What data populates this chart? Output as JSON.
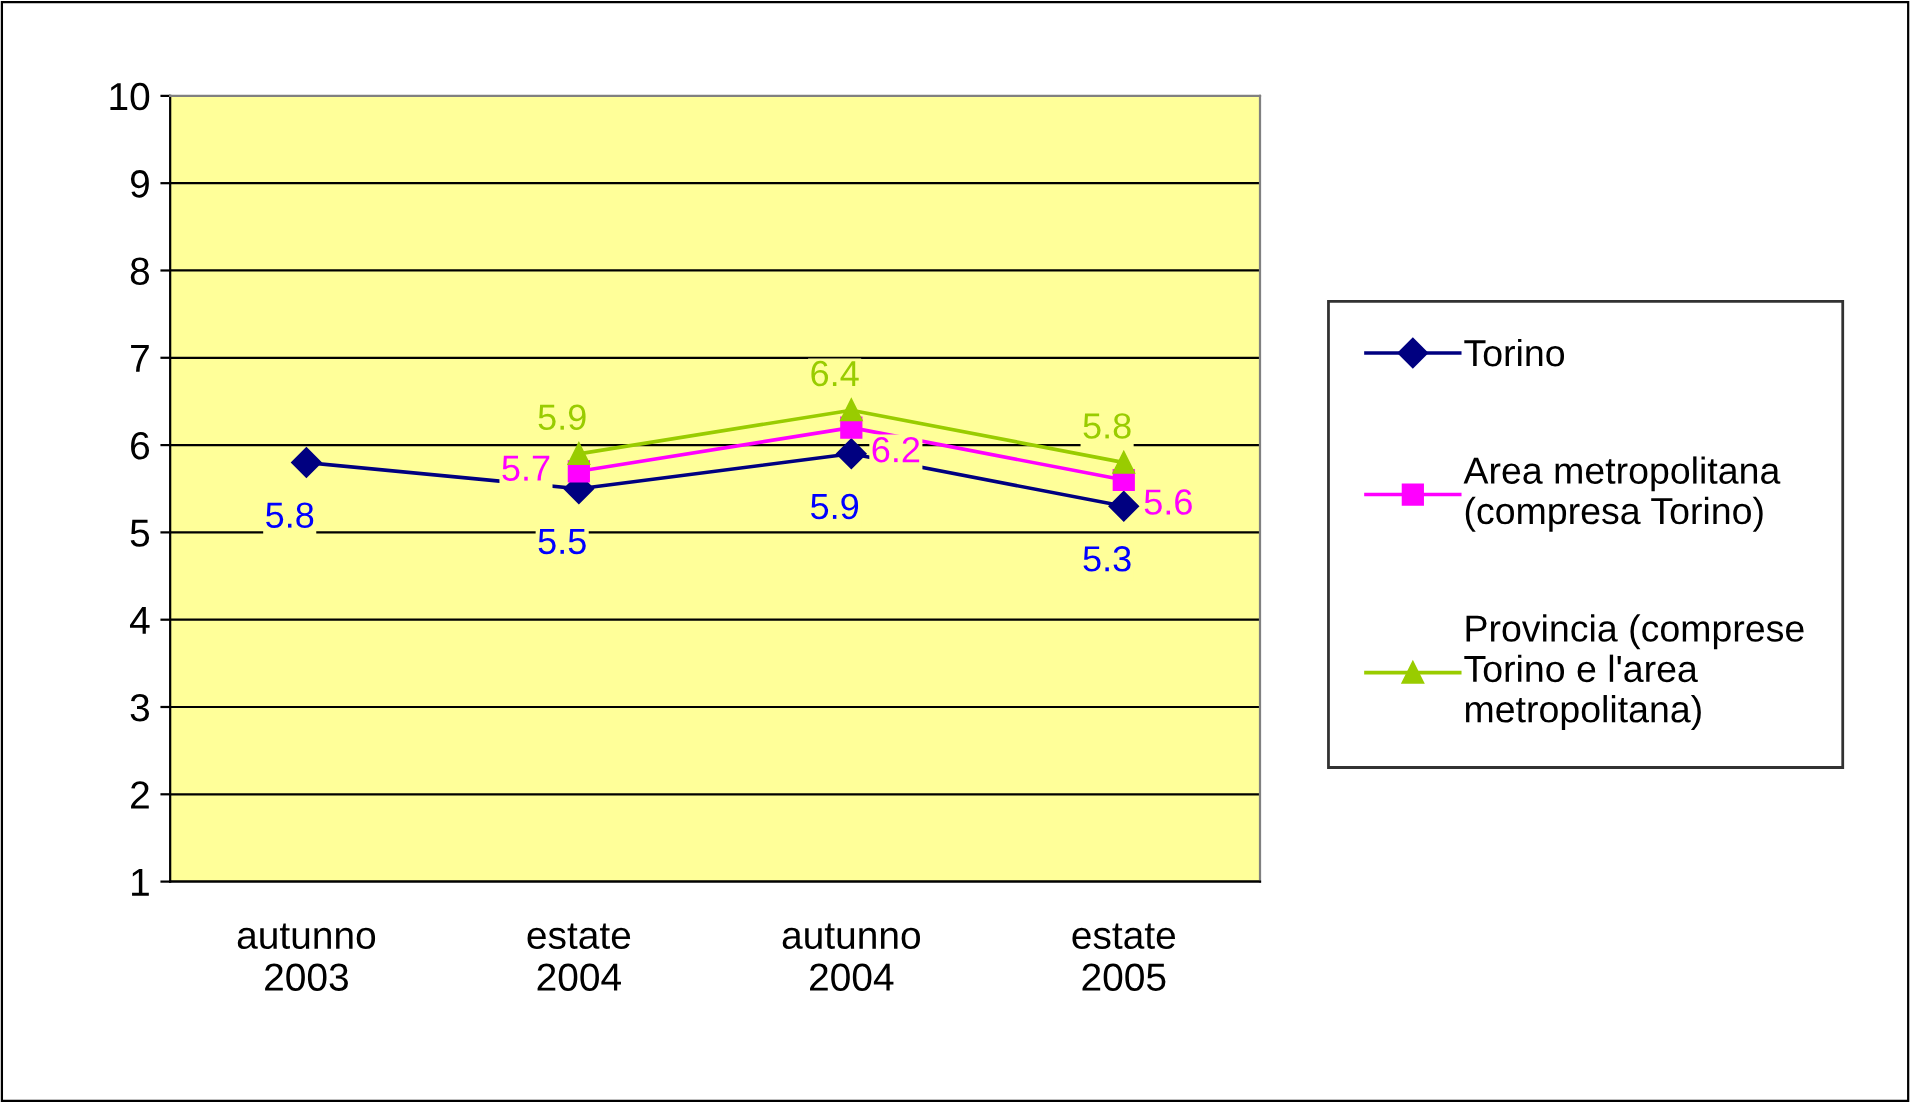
{
  "chart_data": {
    "type": "line",
    "categories": [
      "autunno\n2003",
      "estate\n2004",
      "autunno\n2004",
      "estate\n2005"
    ],
    "series": [
      {
        "name": "Torino",
        "color": "#000080",
        "marker": "diamond",
        "values": [
          5.8,
          5.5,
          5.9,
          5.3
        ]
      },
      {
        "name": "Area metropolitana\n(compresa Torino)",
        "color": "#ff00ff",
        "marker": "square",
        "values": [
          null,
          5.7,
          6.2,
          5.6
        ]
      },
      {
        "name": "Provincia (comprese\nTorino e l'area\nmetropolitana)",
        "color": "#99cc00",
        "marker": "triangle",
        "values": [
          null,
          5.9,
          6.4,
          5.8
        ]
      }
    ],
    "ylim": [
      1,
      10
    ],
    "yticks": [
      1,
      2,
      3,
      4,
      5,
      6,
      7,
      8,
      9,
      10
    ],
    "grid": "y",
    "legend": "right",
    "data_labels": true
  }
}
